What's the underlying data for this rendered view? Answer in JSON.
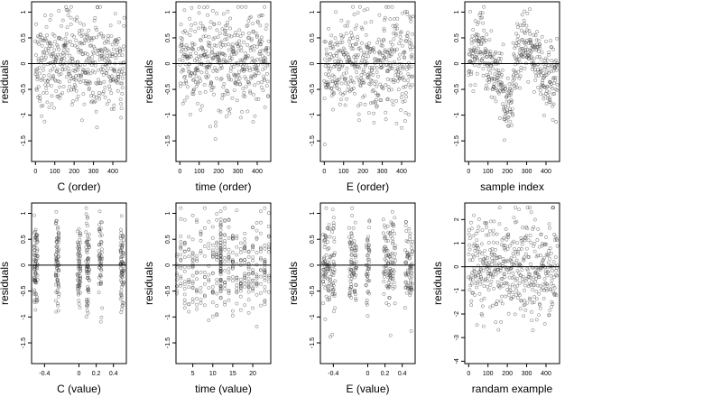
{
  "chart_data": [
    {
      "type": "scatter",
      "xlabel": "C (order)",
      "ylabel": "residuals",
      "xlim": [
        -20,
        470
      ],
      "ylim": [
        -1.9,
        1.2
      ],
      "xticks": [
        0,
        100,
        200,
        300,
        400
      ],
      "yticks": [
        -1.5,
        -1.0,
        -0.5,
        0.0,
        0.5,
        1.0
      ],
      "hline": 0,
      "grid": false,
      "points_estimated": true,
      "n_points": 460,
      "y_range_observed": [
        -1.8,
        1.1
      ]
    },
    {
      "type": "scatter",
      "xlabel": "time (order)",
      "ylabel": "residuals",
      "xlim": [
        -20,
        470
      ],
      "ylim": [
        -1.9,
        1.2
      ],
      "xticks": [
        0,
        100,
        200,
        300,
        400
      ],
      "yticks": [
        -1.5,
        -1.0,
        -0.5,
        0.0,
        0.5,
        1.0
      ],
      "hline": 0,
      "grid": false,
      "points_estimated": true,
      "n_points": 460,
      "y_range_observed": [
        -1.8,
        1.1
      ]
    },
    {
      "type": "scatter",
      "xlabel": "E (order)",
      "ylabel": "residuals",
      "xlim": [
        -20,
        470
      ],
      "ylim": [
        -1.9,
        1.2
      ],
      "xticks": [
        0,
        100,
        200,
        300,
        400
      ],
      "yticks": [
        -1.5,
        -1.0,
        -0.5,
        0.0,
        0.5,
        1.0
      ],
      "hline": 0,
      "grid": false,
      "points_estimated": true,
      "n_points": 460,
      "y_range_observed": [
        -1.8,
        1.1
      ]
    },
    {
      "type": "scatter",
      "xlabel": "sample index",
      "ylabel": "residuals",
      "xlim": [
        -20,
        470
      ],
      "ylim": [
        -1.9,
        1.2
      ],
      "xticks": [
        0,
        100,
        200,
        300,
        400
      ],
      "yticks": [
        -1.5,
        -1.0,
        -0.5,
        0.0,
        0.5,
        1.0
      ],
      "hline": 0,
      "grid": false,
      "points_estimated": true,
      "n_points": 460,
      "y_range_observed": [
        -1.8,
        1.1
      ]
    },
    {
      "type": "scatter",
      "xlabel": "C (value)",
      "ylabel": "residuals",
      "xlim": [
        -0.55,
        0.55
      ],
      "ylim": [
        -1.9,
        1.2
      ],
      "xticks": [
        -0.4,
        0.0,
        0.2,
        0.4
      ],
      "yticks": [
        -1.5,
        -1.0,
        -0.5,
        0.0,
        0.5,
        1.0
      ],
      "hline": 0,
      "grid": false,
      "points_estimated": true,
      "x_levels": [
        -0.5,
        -0.25,
        0.0,
        0.1,
        0.25,
        0.5
      ],
      "y_range_observed": [
        -1.8,
        1.1
      ]
    },
    {
      "type": "scatter",
      "xlabel": "time (value)",
      "ylabel": "residuals",
      "xlim": [
        0.8,
        24.5
      ],
      "ylim": [
        -1.9,
        1.2
      ],
      "xticks": [
        5,
        10,
        15,
        20
      ],
      "yticks": [
        -1.5,
        -1.0,
        -0.5,
        0.0,
        0.5,
        1.0
      ],
      "hline": 0,
      "grid": false,
      "points_estimated": true,
      "y_range_observed": [
        -1.8,
        1.1
      ]
    },
    {
      "type": "scatter",
      "xlabel": "E (value)",
      "ylabel": "residuals",
      "xlim": [
        -0.55,
        0.55
      ],
      "ylim": [
        -1.9,
        1.2
      ],
      "xticks": [
        -0.4,
        0.0,
        0.2,
        0.4
      ],
      "yticks": [
        -1.5,
        -1.0,
        -0.5,
        0.0,
        0.5,
        1.0
      ],
      "hline": 0,
      "grid": false,
      "points_estimated": true,
      "x_levels": [
        -0.5,
        -0.45,
        -0.4,
        -0.2,
        -0.15,
        0.0,
        0.2,
        0.25,
        0.3,
        0.45,
        0.5
      ],
      "y_range_observed": [
        -1.8,
        1.1
      ]
    },
    {
      "type": "scatter",
      "xlabel": "randam example",
      "ylabel": "residuals",
      "xlim": [
        -20,
        470
      ],
      "ylim": [
        -4.1,
        2.7
      ],
      "xticks": [
        0,
        100,
        200,
        300,
        400
      ],
      "yticks": [
        -4,
        -3,
        -2,
        -1,
        0,
        1,
        2
      ],
      "hline": 0,
      "grid": false,
      "points_estimated": true,
      "n_points": 460,
      "y_range_observed": [
        -3.9,
        2.5
      ]
    }
  ]
}
